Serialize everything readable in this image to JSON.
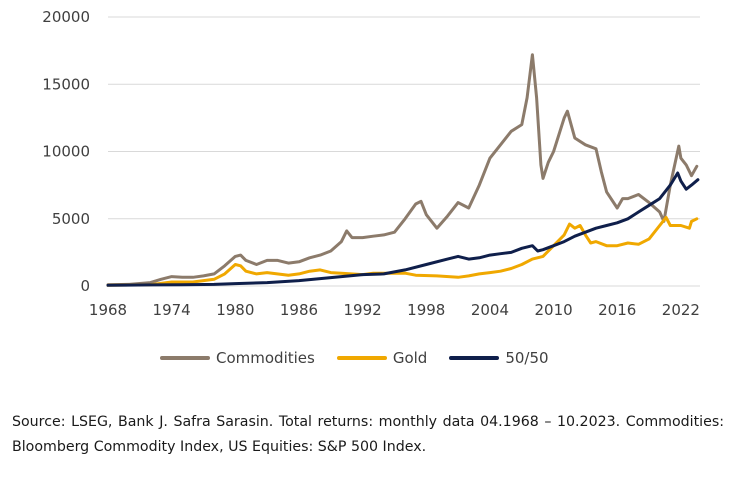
{
  "chart_data": {
    "type": "line",
    "xlim": [
      1968,
      2023.8
    ],
    "ylim": [
      0,
      20000
    ],
    "x_ticks": [
      "1968",
      "1974",
      "1980",
      "1986",
      "1992",
      "1998",
      "2004",
      "2010",
      "2016",
      "2022"
    ],
    "y_ticks": [
      "0",
      "5000",
      "10000",
      "15000",
      "20000"
    ],
    "grid": "horizontal",
    "legend_position": "bottom",
    "series": [
      {
        "name": "Commodities",
        "color": "#8c7b6b",
        "points": [
          [
            1968,
            100
          ],
          [
            1970,
            120
          ],
          [
            1972,
            250
          ],
          [
            1973,
            500
          ],
          [
            1974,
            700
          ],
          [
            1975,
            650
          ],
          [
            1976,
            650
          ],
          [
            1977,
            750
          ],
          [
            1978,
            900
          ],
          [
            1979,
            1500
          ],
          [
            1980,
            2200
          ],
          [
            1980.5,
            2300
          ],
          [
            1981,
            1900
          ],
          [
            1982,
            1600
          ],
          [
            1983,
            1900
          ],
          [
            1984,
            1900
          ],
          [
            1985,
            1700
          ],
          [
            1986,
            1800
          ],
          [
            1987,
            2100
          ],
          [
            1988,
            2300
          ],
          [
            1989,
            2600
          ],
          [
            1990,
            3300
          ],
          [
            1990.5,
            4100
          ],
          [
            1991,
            3600
          ],
          [
            1992,
            3600
          ],
          [
            1993,
            3700
          ],
          [
            1994,
            3800
          ],
          [
            1995,
            4000
          ],
          [
            1996,
            5000
          ],
          [
            1997,
            6100
          ],
          [
            1997.5,
            6300
          ],
          [
            1998,
            5300
          ],
          [
            1999,
            4300
          ],
          [
            2000,
            5200
          ],
          [
            2001,
            6200
          ],
          [
            2002,
            5800
          ],
          [
            2003,
            7500
          ],
          [
            2004,
            9500
          ],
          [
            2005,
            10500
          ],
          [
            2006,
            11500
          ],
          [
            2007,
            12000
          ],
          [
            2007.5,
            14000
          ],
          [
            2008,
            17200
          ],
          [
            2008.4,
            14000
          ],
          [
            2008.8,
            9000
          ],
          [
            2009,
            8000
          ],
          [
            2009.5,
            9200
          ],
          [
            2010,
            10000
          ],
          [
            2011,
            12500
          ],
          [
            2011.3,
            13000
          ],
          [
            2012,
            11000
          ],
          [
            2013,
            10500
          ],
          [
            2014,
            10200
          ],
          [
            2014.5,
            8500
          ],
          [
            2015,
            7000
          ],
          [
            2016,
            5800
          ],
          [
            2016.5,
            6500
          ],
          [
            2017,
            6500
          ],
          [
            2018,
            6800
          ],
          [
            2019,
            6200
          ],
          [
            2020,
            5500
          ],
          [
            2020.4,
            4800
          ],
          [
            2021,
            7500
          ],
          [
            2021.8,
            10400
          ],
          [
            2022,
            9500
          ],
          [
            2022.5,
            9000
          ],
          [
            2023,
            8200
          ],
          [
            2023.5,
            8900
          ]
        ]
      },
      {
        "name": "Gold",
        "color": "#f0a800",
        "points": [
          [
            1968,
            50
          ],
          [
            1972,
            100
          ],
          [
            1974,
            300
          ],
          [
            1976,
            300
          ],
          [
            1978,
            500
          ],
          [
            1979,
            900
          ],
          [
            1980,
            1600
          ],
          [
            1980.5,
            1500
          ],
          [
            1981,
            1100
          ],
          [
            1982,
            900
          ],
          [
            1983,
            1000
          ],
          [
            1985,
            800
          ],
          [
            1986,
            900
          ],
          [
            1987,
            1100
          ],
          [
            1988,
            1200
          ],
          [
            1989,
            1000
          ],
          [
            1990,
            950
          ],
          [
            1992,
            850
          ],
          [
            1993,
            950
          ],
          [
            1996,
            950
          ],
          [
            1997,
            800
          ],
          [
            1999,
            750
          ],
          [
            2001,
            650
          ],
          [
            2002,
            750
          ],
          [
            2003,
            900
          ],
          [
            2004,
            1000
          ],
          [
            2005,
            1100
          ],
          [
            2006,
            1300
          ],
          [
            2007,
            1600
          ],
          [
            2008,
            2000
          ],
          [
            2009,
            2200
          ],
          [
            2010,
            3000
          ],
          [
            2011,
            3800
          ],
          [
            2011.5,
            4600
          ],
          [
            2012,
            4300
          ],
          [
            2012.5,
            4500
          ],
          [
            2013,
            3800
          ],
          [
            2013.5,
            3200
          ],
          [
            2014,
            3300
          ],
          [
            2015,
            3000
          ],
          [
            2016,
            3000
          ],
          [
            2017,
            3200
          ],
          [
            2018,
            3100
          ],
          [
            2019,
            3500
          ],
          [
            2020,
            4500
          ],
          [
            2020.6,
            5100
          ],
          [
            2021,
            4500
          ],
          [
            2022,
            4500
          ],
          [
            2022.8,
            4300
          ],
          [
            2023,
            4800
          ],
          [
            2023.5,
            5000
          ]
        ]
      },
      {
        "name": "50/50",
        "color": "#0f1f4b",
        "points": [
          [
            1968,
            50
          ],
          [
            1972,
            80
          ],
          [
            1975,
            100
          ],
          [
            1978,
            120
          ],
          [
            1980,
            180
          ],
          [
            1983,
            250
          ],
          [
            1986,
            400
          ],
          [
            1988,
            550
          ],
          [
            1990,
            700
          ],
          [
            1992,
            850
          ],
          [
            1994,
            900
          ],
          [
            1996,
            1200
          ],
          [
            1998,
            1600
          ],
          [
            2000,
            2000
          ],
          [
            2001,
            2200
          ],
          [
            2002,
            2000
          ],
          [
            2003,
            2100
          ],
          [
            2004,
            2300
          ],
          [
            2005,
            2400
          ],
          [
            2006,
            2500
          ],
          [
            2007,
            2800
          ],
          [
            2008,
            3000
          ],
          [
            2008.5,
            2600
          ],
          [
            2009,
            2700
          ],
          [
            2010,
            3000
          ],
          [
            2011,
            3300
          ],
          [
            2012,
            3700
          ],
          [
            2013,
            4000
          ],
          [
            2014,
            4300
          ],
          [
            2015,
            4500
          ],
          [
            2016,
            4700
          ],
          [
            2017,
            5000
          ],
          [
            2018,
            5500
          ],
          [
            2019,
            6000
          ],
          [
            2020,
            6500
          ],
          [
            2021,
            7500
          ],
          [
            2021.7,
            8400
          ],
          [
            2022,
            7800
          ],
          [
            2022.5,
            7200
          ],
          [
            2023,
            7500
          ],
          [
            2023.6,
            7900
          ]
        ]
      }
    ]
  },
  "source_text": "Source: LSEG, Bank J. Safra Sarasin. Total returns: monthly data 04.1968 – 10.2023. Commodities: Bloomberg Commodity Index, US Equities: S&P 500 Index."
}
